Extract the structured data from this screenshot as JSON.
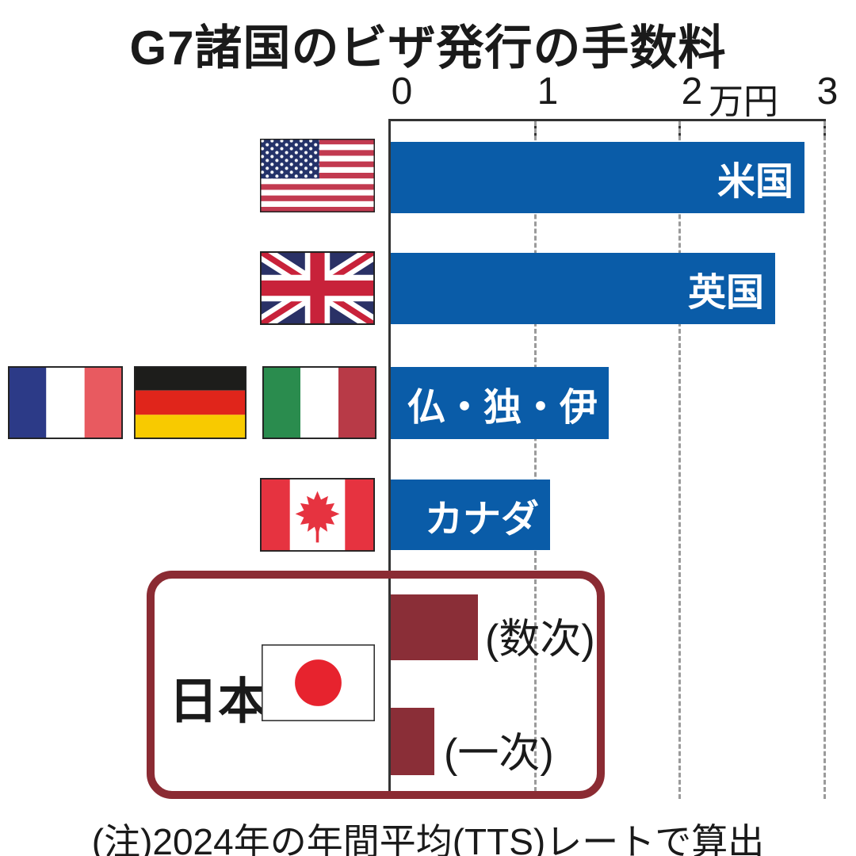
{
  "title": "G7諸国のビザ発行の手数料",
  "axis": {
    "tick_labels": [
      "0",
      "1",
      "2",
      "3"
    ],
    "unit_label": "万円",
    "min": 0,
    "max": 3,
    "gridlines": [
      1,
      2,
      3
    ]
  },
  "chart_data": {
    "type": "bar",
    "orientation": "horizontal",
    "title": "G7諸国のビザ発行の手数料",
    "xlabel": "万円",
    "xlim": [
      0,
      3
    ],
    "grid": "dashed vertical at 1, 2, 3",
    "categories": [
      "米国",
      "英国",
      "仏・独・伊",
      "カナダ",
      "日本(数次)",
      "日本(一次)"
    ],
    "values": [
      2.85,
      2.65,
      1.5,
      1.1,
      0.6,
      0.3
    ],
    "bar_colors": [
      "#0a5ca8",
      "#0a5ca8",
      "#0a5ca8",
      "#0a5ca8",
      "#8a2e37",
      "#8a2e37"
    ],
    "flags": [
      "USA",
      "UK",
      "France / Germany / Italy",
      "Canada",
      "Japan",
      "Japan"
    ]
  },
  "japan": {
    "label": "日本",
    "multiple_label": "(数次)",
    "single_label": "(一次)"
  },
  "note": "(注)2024年の年間平均(TTS)レートで算出",
  "colors": {
    "bar_blue": "#0a5ca8",
    "bar_maroon": "#8a2e37",
    "japan_box_border": "#8b2b33",
    "axis_line": "#333333",
    "gridline": "#9a9a9a",
    "text": "#1a1a1a"
  }
}
